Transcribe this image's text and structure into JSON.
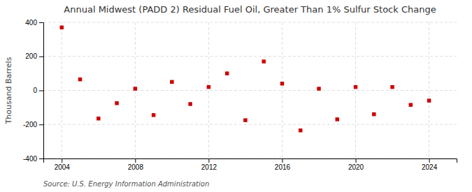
{
  "chart_data": {
    "type": "scatter",
    "title": "Annual Midwest (PADD 2) Residual Fuel Oil, Greater Than 1% Sulfur Stock Change",
    "y_label": "Thousand Barrels",
    "annotations": [
      "Source: U.S. Energy Information Administration"
    ],
    "x": [
      2004,
      2005,
      2006,
      2007,
      2008,
      2009,
      2010,
      2011,
      2012,
      2013,
      2014,
      2015,
      2016,
      2017,
      2018,
      2019,
      2020,
      2021,
      2022,
      2023,
      2024
    ],
    "values": [
      370,
      65,
      -165,
      -75,
      10,
      -145,
      50,
      -80,
      20,
      100,
      -175,
      170,
      40,
      -235,
      10,
      -170,
      20,
      -140,
      20,
      -85,
      -60
    ],
    "color": "#cc0000",
    "marker": "square",
    "xlim": [
      2003.0,
      2025.5
    ],
    "xticks": [
      2004,
      2008,
      2012,
      2016,
      2020,
      2024
    ],
    "ylim": [
      -400,
      400
    ],
    "yticks": [
      -400,
      -200,
      0,
      200,
      400
    ],
    "grid": true
  }
}
